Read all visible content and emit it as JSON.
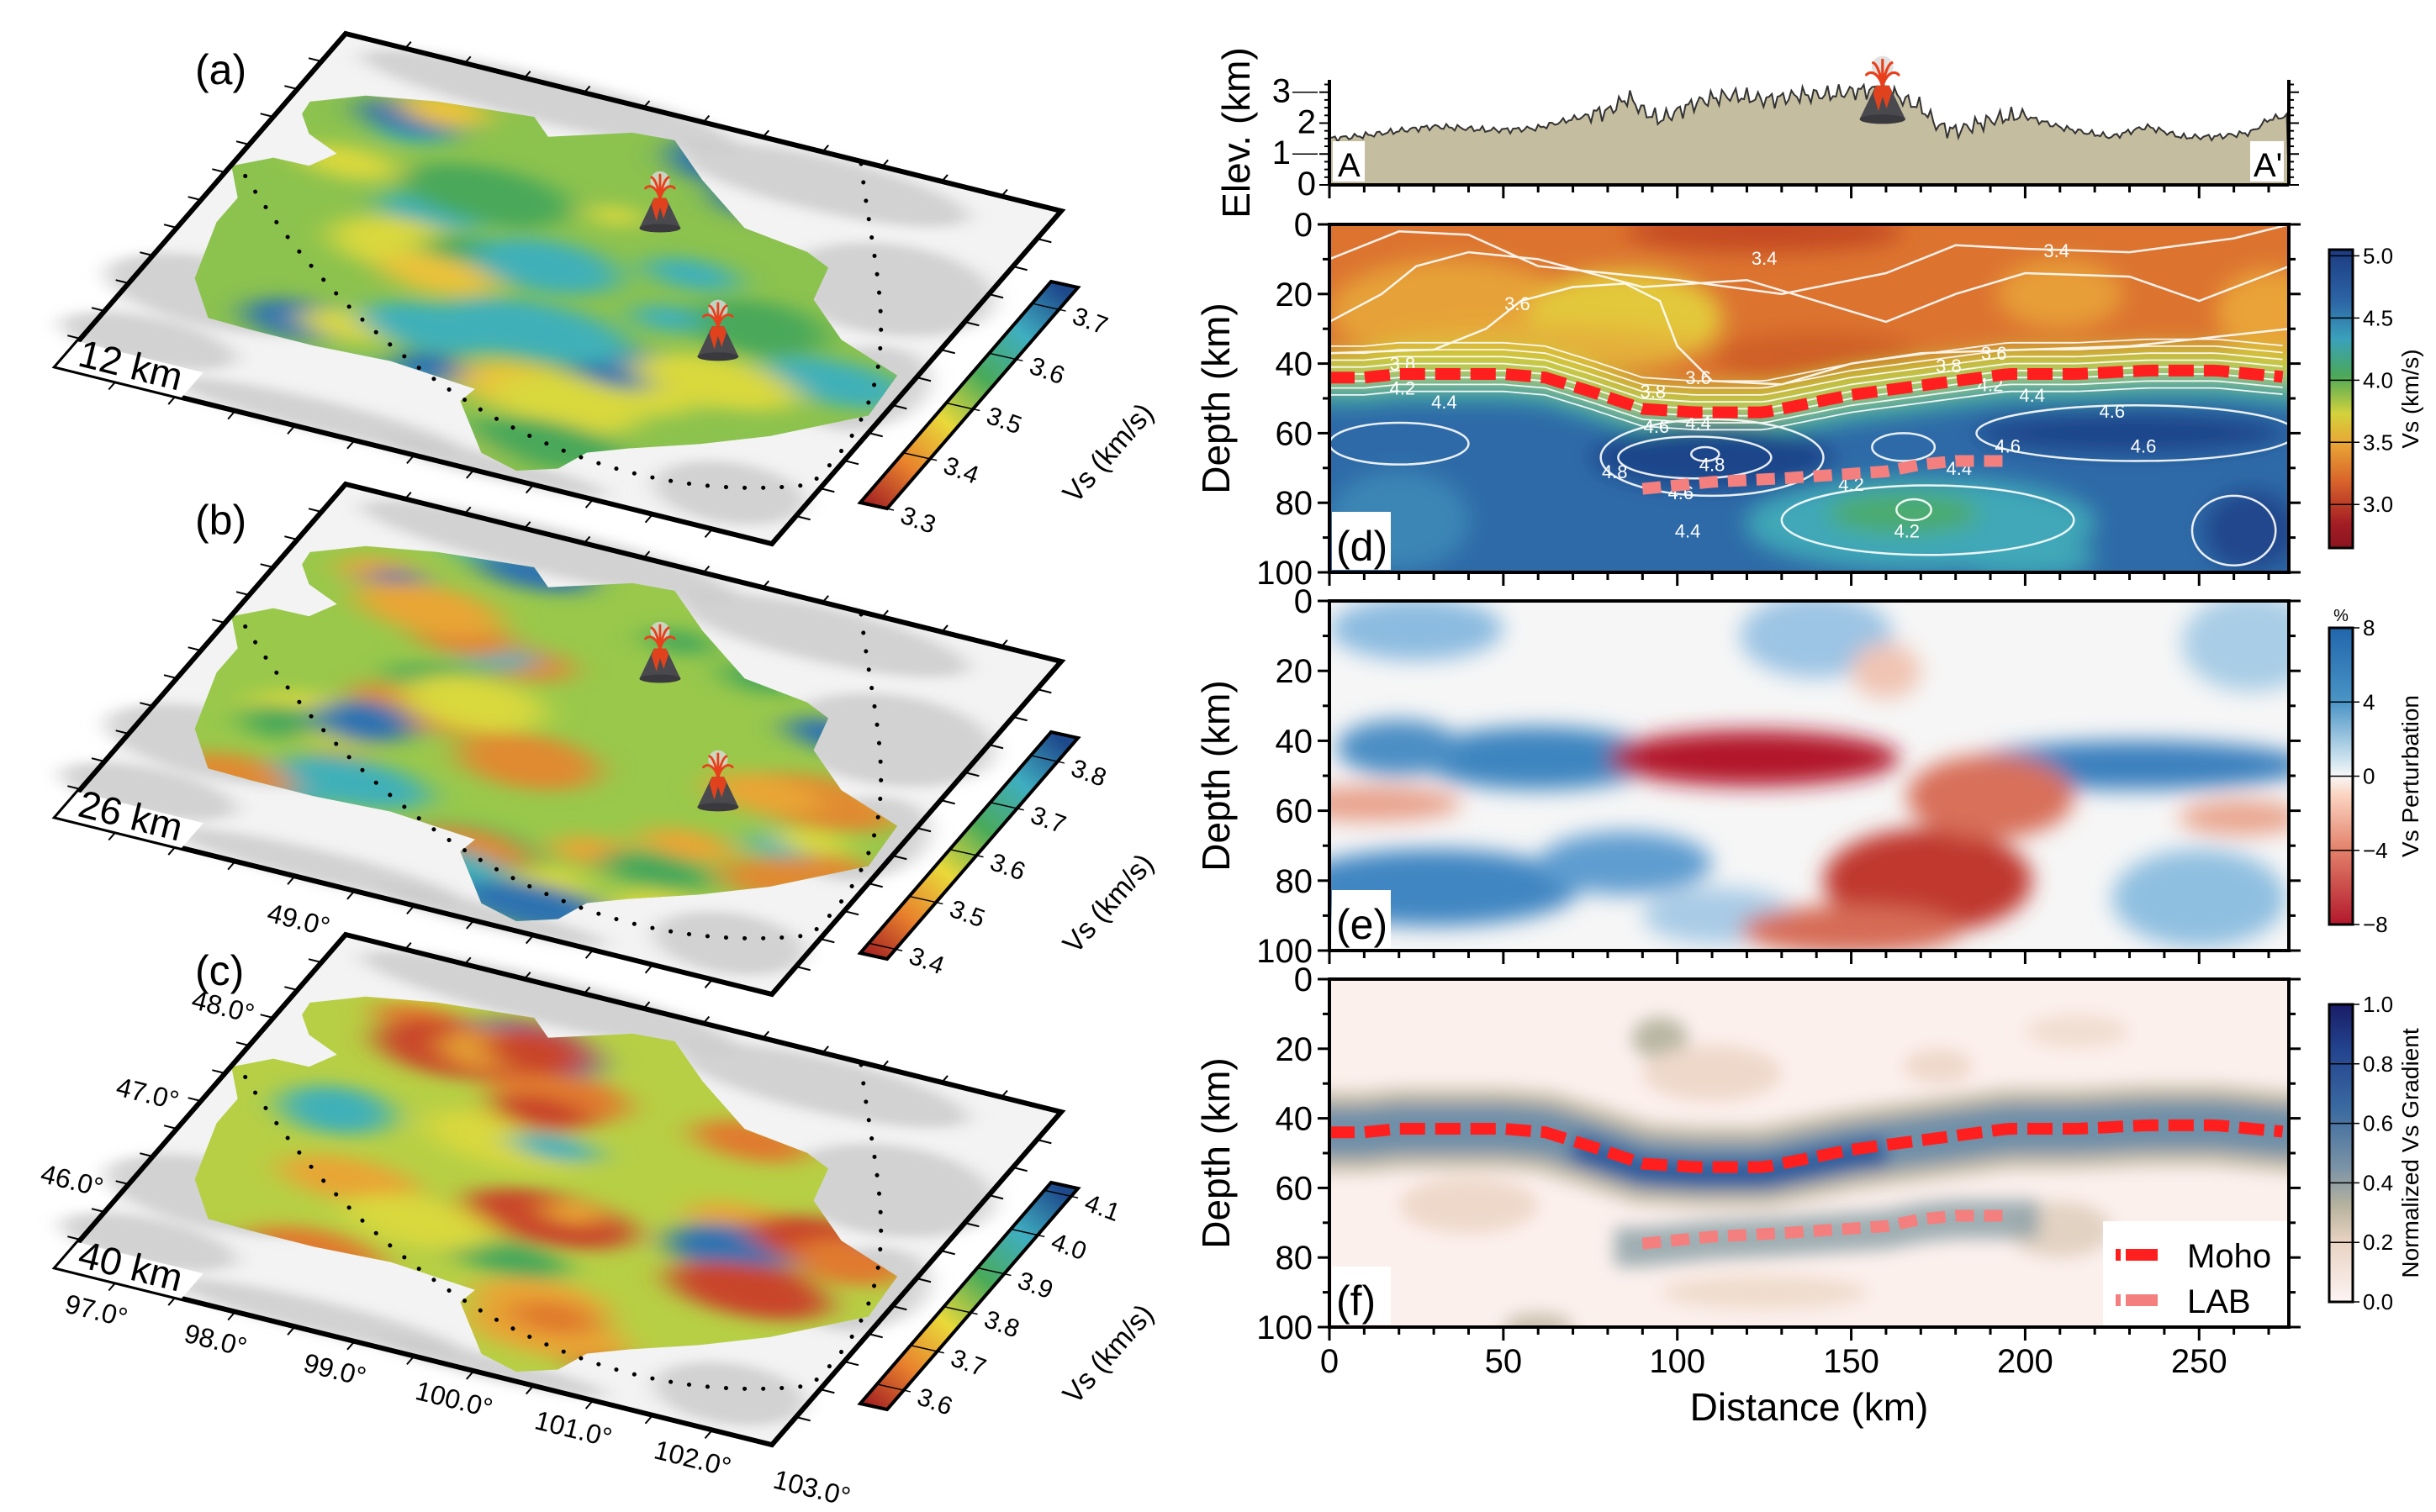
{
  "maps": [
    {
      "label": "(a)",
      "depth": "12 km",
      "base_color": "#8cc24e",
      "colorbar": {
        "title": "Vs (km/s)",
        "ticks": [
          "3.3",
          "3.4",
          "3.5",
          "3.6",
          "3.7"
        ],
        "values": [
          3.3,
          3.4,
          3.5,
          3.6,
          3.7
        ],
        "range": [
          3.3,
          3.744
        ]
      }
    },
    {
      "label": "(b)",
      "depth": "26 km",
      "base_color": "#99c84b",
      "colorbar": {
        "title": "Vs (km/s)",
        "ticks": [
          "3.4",
          "3.5",
          "3.6",
          "3.7",
          "3.8"
        ],
        "values": [
          3.4,
          3.5,
          3.6,
          3.7,
          3.8
        ],
        "range": [
          3.379,
          3.85
        ]
      }
    },
    {
      "label": "(c)",
      "depth": "40 km",
      "base_color": "#b7cf45",
      "colorbar": {
        "title": "Vs (km/s)",
        "ticks": [
          "3.6",
          "3.7",
          "3.8",
          "3.9",
          "4.0",
          "4.1"
        ],
        "values": [
          3.6,
          3.7,
          3.8,
          3.9,
          4.0,
          4.1
        ],
        "range": [
          3.55,
          4.12
        ]
      }
    }
  ],
  "map_axes": {
    "lon_ticks": [
      "97.0°",
      "98.0°",
      "99.0°",
      "100.0°",
      "101.0°",
      "102.0°",
      "103.0°"
    ],
    "lon_values": [
      97,
      98,
      99,
      100,
      101,
      102,
      103
    ],
    "lat_ticks": [
      "46.0°",
      "47.0°",
      "48.0°",
      "49.0°"
    ],
    "lat_values": [
      46,
      47,
      48,
      49
    ],
    "lon_range": [
      97,
      103
    ],
    "lat_range": [
      45.17,
      49.0
    ]
  },
  "map_colormap": [
    "#a01c22",
    "#e8812d",
    "#e9d93a",
    "#4aaa5a",
    "#3faec0",
    "#1e4a8c"
  ],
  "chart_data": [
    {
      "id": "elevation",
      "type": "area",
      "ylabel": "Elev. (km)",
      "yticks": [
        "0",
        "1",
        "2",
        "3"
      ],
      "ytick_values": [
        0,
        1,
        2,
        3
      ],
      "ylim": [
        0,
        3.4
      ],
      "xlim": [
        0,
        275.8
      ],
      "start_label": "A",
      "end_label": "A'",
      "fill_color": "#c4bd9f",
      "x": [
        0,
        15,
        30,
        45,
        60,
        70,
        80,
        86,
        90,
        95,
        105,
        115,
        125,
        135,
        145,
        160,
        170,
        175,
        180,
        190,
        200,
        210,
        225,
        235,
        245,
        255,
        265,
        270,
        275.8
      ],
      "y": [
        1.5,
        1.7,
        1.85,
        1.8,
        1.85,
        2.1,
        2.35,
        2.9,
        2.5,
        2.2,
        2.6,
        2.8,
        2.8,
        3.0,
        2.9,
        3.0,
        2.6,
        2.0,
        1.8,
        2.0,
        2.2,
        1.9,
        1.55,
        1.85,
        1.55,
        1.6,
        1.7,
        2.1,
        2.2
      ]
    },
    {
      "id": "vs_section",
      "type": "heatmap",
      "panel_label": "(d)",
      "ylabel": "Depth (km)",
      "yticks": [
        "0",
        "20",
        "40",
        "60",
        "80",
        "100"
      ],
      "ytick_values": [
        0,
        20,
        40,
        60,
        80,
        100
      ],
      "ylim": [
        0,
        100
      ],
      "xlim": [
        0,
        275.8
      ],
      "colorbar": {
        "title": "Vs (km/s)",
        "ticks": [
          "5.0",
          "4.5",
          "4.0",
          "3.5",
          "3.0"
        ],
        "values": [
          5.0,
          4.5,
          4.0,
          3.5,
          3.0
        ],
        "range": [
          2.65,
          5.05
        ]
      },
      "contour_labels": [
        {
          "text": "3.4",
          "x": 125,
          "y": 9.7
        },
        {
          "text": "3.4",
          "x": 209,
          "y": 7.5
        },
        {
          "text": "3.6",
          "x": 54,
          "y": 22.7
        },
        {
          "text": "3.8",
          "x": 21,
          "y": 40
        },
        {
          "text": "4.2",
          "x": 21,
          "y": 47
        },
        {
          "text": "4.4",
          "x": 21,
          "y": 51
        },
        {
          "text": "3.6",
          "x": 106,
          "y": 44
        },
        {
          "text": "3.8",
          "x": 105,
          "y": 48
        },
        {
          "text": "4.4",
          "x": 106,
          "y": 57
        },
        {
          "text": "4.6",
          "x": 94,
          "y": 58
        },
        {
          "text": "4.8",
          "x": 82,
          "y": 71
        },
        {
          "text": "4.8",
          "x": 110,
          "y": 69
        },
        {
          "text": "4.6",
          "x": 101,
          "y": 77
        },
        {
          "text": "4.2",
          "x": 150,
          "y": 74.6
        },
        {
          "text": "4.4",
          "x": 181,
          "y": 70
        },
        {
          "text": "3.6",
          "x": 191,
          "y": 37
        },
        {
          "text": "3.8",
          "x": 190,
          "y": 40.6
        },
        {
          "text": "4.2",
          "x": 190,
          "y": 46
        },
        {
          "text": "4.4",
          "x": 190,
          "y": 49
        },
        {
          "text": "4.6",
          "x": 213,
          "y": 53.6
        },
        {
          "text": "4.6",
          "x": 195,
          "y": 63.6
        },
        {
          "text": "4.6",
          "x": 234,
          "y": 63.6
        },
        {
          "text": "4.2",
          "x": 166,
          "y": 88
        },
        {
          "text": "4.4",
          "x": 103,
          "y": 88
        }
      ]
    },
    {
      "id": "vs_perturbation",
      "type": "heatmap",
      "panel_label": "(e)",
      "ylabel": "Depth (km)",
      "yticks": [
        "0",
        "20",
        "40",
        "60",
        "80",
        "100"
      ],
      "ytick_values": [
        0,
        20,
        40,
        60,
        80,
        100
      ],
      "ylim": [
        0,
        100
      ],
      "xlim": [
        0,
        275.8
      ],
      "colorbar": {
        "title": "Vs Perturbation",
        "unit": "%",
        "ticks": [
          "8",
          "4",
          "0",
          "−4",
          "−8"
        ],
        "values": [
          8,
          4,
          0,
          -4,
          -8
        ],
        "range": [
          -8,
          8
        ]
      }
    },
    {
      "id": "vs_gradient",
      "type": "heatmap",
      "panel_label": "(f)",
      "ylabel": "Depth (km)",
      "xlabel": "Distance (km)",
      "yticks": [
        "0",
        "20",
        "40",
        "60",
        "80",
        "100"
      ],
      "ytick_values": [
        0,
        20,
        40,
        60,
        80,
        100
      ],
      "xticks": [
        "0",
        "50",
        "100",
        "150",
        "200",
        "250"
      ],
      "xtick_values": [
        0,
        50,
        100,
        150,
        200,
        250
      ],
      "ylim": [
        0,
        100
      ],
      "xlim": [
        0,
        275.8
      ],
      "colorbar": {
        "title": "Normalized Vs Gradient",
        "ticks": [
          "1.0",
          "0.8",
          "0.6",
          "0.4",
          "0.2",
          "0.0"
        ],
        "values": [
          1.0,
          0.8,
          0.6,
          0.4,
          0.2,
          0.0
        ],
        "range": [
          0,
          1
        ]
      },
      "legend": [
        {
          "name": "Moho",
          "color": "#ff1f1f"
        },
        {
          "name": "LAB",
          "color": "#f47f7f"
        }
      ]
    }
  ],
  "interfaces": {
    "moho": {
      "x": [
        0,
        10,
        20,
        50,
        62,
        75,
        90,
        105,
        125,
        135,
        150,
        165,
        180,
        195,
        215,
        235,
        255,
        275.8
      ],
      "y": [
        44,
        44,
        43,
        43,
        44,
        48,
        53,
        54,
        54,
        52,
        49,
        47,
        45,
        43,
        43,
        42,
        42,
        44
      ]
    },
    "lab": {
      "x": [
        90,
        110,
        130,
        145,
        160,
        170,
        180,
        195
      ],
      "y": [
        76,
        74,
        73,
        72,
        71,
        69,
        68,
        68
      ]
    }
  }
}
